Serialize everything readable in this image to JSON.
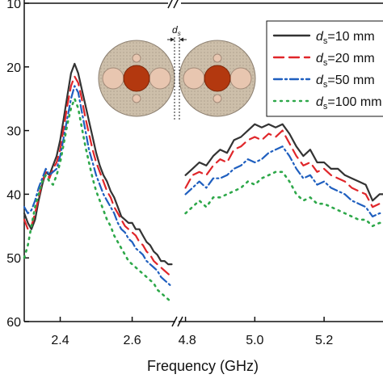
{
  "chart_data": {
    "type": "line",
    "xlabel": "Frequency (GHz)",
    "ylabel": "",
    "x_ticks_left": [
      "2.4",
      "2.6"
    ],
    "x_ticks_right": [
      "4.8",
      "5.0",
      "5.2"
    ],
    "x_ranges": [
      [
        2.3,
        2.72
      ],
      [
        4.78,
        5.37
      ]
    ],
    "y_ticks": [
      "10",
      "20",
      "30",
      "40",
      "50",
      "60"
    ],
    "ylim": [
      -60,
      -10
    ],
    "legend_placement": "top-right",
    "inset_label": "ds",
    "series": [
      {
        "name": "ds=10 mm",
        "prefix": "d",
        "sub": "s",
        "suffix": "=10 mm",
        "color": "#333333",
        "dash": "solid",
        "left": [
          [
            2.3,
            -43
          ],
          [
            2.31,
            -44.5
          ],
          [
            2.32,
            -45.5
          ],
          [
            2.33,
            -44
          ],
          [
            2.34,
            -41
          ],
          [
            2.35,
            -38.5
          ],
          [
            2.36,
            -36.5
          ],
          [
            2.37,
            -37
          ],
          [
            2.38,
            -35.5
          ],
          [
            2.39,
            -34
          ],
          [
            2.4,
            -31.5
          ],
          [
            2.41,
            -28
          ],
          [
            2.42,
            -24.5
          ],
          [
            2.43,
            -21
          ],
          [
            2.44,
            -19.5
          ],
          [
            2.45,
            -21
          ],
          [
            2.46,
            -23.5
          ],
          [
            2.47,
            -26
          ],
          [
            2.48,
            -28.5
          ],
          [
            2.49,
            -31
          ],
          [
            2.5,
            -33.5
          ],
          [
            2.51,
            -35.5
          ],
          [
            2.52,
            -37
          ],
          [
            2.53,
            -38
          ],
          [
            2.54,
            -39.5
          ],
          [
            2.55,
            -40.5
          ],
          [
            2.56,
            -42
          ],
          [
            2.57,
            -43.5
          ],
          [
            2.58,
            -44
          ],
          [
            2.59,
            -44.5
          ],
          [
            2.6,
            -44.5
          ],
          [
            2.61,
            -45.5
          ],
          [
            2.62,
            -45.5
          ],
          [
            2.63,
            -46.5
          ],
          [
            2.64,
            -47.5
          ],
          [
            2.65,
            -48
          ],
          [
            2.66,
            -49
          ],
          [
            2.67,
            -49.5
          ],
          [
            2.68,
            -50.5
          ],
          [
            2.69,
            -50.5
          ],
          [
            2.7,
            -51
          ],
          [
            2.71,
            -51
          ]
        ],
        "right": [
          [
            4.8,
            -37
          ],
          [
            4.82,
            -36
          ],
          [
            4.84,
            -35
          ],
          [
            4.86,
            -35.5
          ],
          [
            4.88,
            -34
          ],
          [
            4.9,
            -33
          ],
          [
            4.92,
            -33.5
          ],
          [
            4.94,
            -31.5
          ],
          [
            4.96,
            -31
          ],
          [
            4.98,
            -30
          ],
          [
            5.0,
            -29
          ],
          [
            5.02,
            -29.5
          ],
          [
            5.04,
            -29
          ],
          [
            5.06,
            -29.5
          ],
          [
            5.08,
            -29
          ],
          [
            5.1,
            -30.5
          ],
          [
            5.12,
            -32.5
          ],
          [
            5.14,
            -34
          ],
          [
            5.16,
            -33
          ],
          [
            5.18,
            -35
          ],
          [
            5.2,
            -35
          ],
          [
            5.22,
            -36
          ],
          [
            5.24,
            -36
          ],
          [
            5.26,
            -37
          ],
          [
            5.28,
            -37.5
          ],
          [
            5.3,
            -38
          ],
          [
            5.32,
            -38.5
          ],
          [
            5.34,
            -41
          ],
          [
            5.36,
            -40
          ],
          [
            5.37,
            -40
          ]
        ]
      },
      {
        "name": "ds=20 mm",
        "prefix": "d",
        "sub": "s",
        "suffix": "=20 mm",
        "color": "#e0262a",
        "dash": "12 7",
        "left": [
          [
            2.3,
            -44
          ],
          [
            2.31,
            -45.5
          ],
          [
            2.32,
            -45
          ],
          [
            2.33,
            -43
          ],
          [
            2.34,
            -40.5
          ],
          [
            2.35,
            -38
          ],
          [
            2.36,
            -36.5
          ],
          [
            2.37,
            -37.5
          ],
          [
            2.38,
            -36
          ],
          [
            2.39,
            -35
          ],
          [
            2.4,
            -33
          ],
          [
            2.41,
            -29.5
          ],
          [
            2.42,
            -26
          ],
          [
            2.43,
            -23
          ],
          [
            2.44,
            -21.5
          ],
          [
            2.45,
            -22.5
          ],
          [
            2.46,
            -25
          ],
          [
            2.47,
            -28
          ],
          [
            2.48,
            -30.5
          ],
          [
            2.49,
            -33
          ],
          [
            2.5,
            -35
          ],
          [
            2.51,
            -36.5
          ],
          [
            2.52,
            -38
          ],
          [
            2.53,
            -39.5
          ],
          [
            2.54,
            -40.5
          ],
          [
            2.55,
            -42
          ],
          [
            2.56,
            -43
          ],
          [
            2.57,
            -44
          ],
          [
            2.58,
            -45
          ],
          [
            2.59,
            -45.5
          ],
          [
            2.6,
            -46
          ],
          [
            2.61,
            -46.5
          ],
          [
            2.62,
            -47.5
          ],
          [
            2.63,
            -48
          ],
          [
            2.64,
            -49
          ],
          [
            2.65,
            -49.5
          ],
          [
            2.66,
            -50.5
          ],
          [
            2.67,
            -51
          ],
          [
            2.68,
            -51.5
          ],
          [
            2.69,
            -52
          ],
          [
            2.7,
            -52.5
          ],
          [
            2.71,
            -53
          ]
        ],
        "right": [
          [
            4.8,
            -39
          ],
          [
            4.82,
            -37
          ],
          [
            4.84,
            -36.5
          ],
          [
            4.86,
            -37
          ],
          [
            4.88,
            -35.5
          ],
          [
            4.9,
            -34.5
          ],
          [
            4.92,
            -35
          ],
          [
            4.94,
            -33
          ],
          [
            4.96,
            -32.5
          ],
          [
            4.98,
            -31.5
          ],
          [
            5.0,
            -31
          ],
          [
            5.02,
            -31.5
          ],
          [
            5.04,
            -30.5
          ],
          [
            5.06,
            -31
          ],
          [
            5.08,
            -30
          ],
          [
            5.1,
            -32
          ],
          [
            5.12,
            -34
          ],
          [
            5.14,
            -35.5
          ],
          [
            5.16,
            -35
          ],
          [
            5.18,
            -36.5
          ],
          [
            5.2,
            -36
          ],
          [
            5.22,
            -37
          ],
          [
            5.24,
            -37.5
          ],
          [
            5.26,
            -38
          ],
          [
            5.28,
            -39
          ],
          [
            5.3,
            -39.5
          ],
          [
            5.32,
            -40
          ],
          [
            5.34,
            -42
          ],
          [
            5.36,
            -41.5
          ],
          [
            5.37,
            -41.5
          ]
        ]
      },
      {
        "name": "ds=50 mm",
        "prefix": "d",
        "sub": "s",
        "suffix": "=50 mm",
        "color": "#1f5fbf",
        "dash": "10 4 2 4",
        "left": [
          [
            2.3,
            -42
          ],
          [
            2.31,
            -43
          ],
          [
            2.32,
            -42.5
          ],
          [
            2.33,
            -41
          ],
          [
            2.34,
            -39
          ],
          [
            2.35,
            -37.5
          ],
          [
            2.36,
            -36
          ],
          [
            2.37,
            -37
          ],
          [
            2.38,
            -36.5
          ],
          [
            2.39,
            -36
          ],
          [
            2.4,
            -34
          ],
          [
            2.41,
            -31
          ],
          [
            2.42,
            -28
          ],
          [
            2.43,
            -25
          ],
          [
            2.44,
            -23
          ],
          [
            2.45,
            -24
          ],
          [
            2.46,
            -27
          ],
          [
            2.47,
            -30
          ],
          [
            2.48,
            -33
          ],
          [
            2.49,
            -35
          ],
          [
            2.5,
            -37
          ],
          [
            2.51,
            -38.5
          ],
          [
            2.52,
            -40
          ],
          [
            2.53,
            -41
          ],
          [
            2.54,
            -42
          ],
          [
            2.55,
            -43
          ],
          [
            2.56,
            -44.5
          ],
          [
            2.57,
            -45.5
          ],
          [
            2.58,
            -46
          ],
          [
            2.59,
            -47
          ],
          [
            2.6,
            -47.5
          ],
          [
            2.61,
            -48.5
          ],
          [
            2.62,
            -49
          ],
          [
            2.63,
            -49.5
          ],
          [
            2.64,
            -50.5
          ],
          [
            2.65,
            -51
          ],
          [
            2.66,
            -51.5
          ],
          [
            2.67,
            -52
          ],
          [
            2.68,
            -53
          ],
          [
            2.69,
            -53.5
          ],
          [
            2.7,
            -54
          ],
          [
            2.71,
            -54.5
          ]
        ],
        "right": [
          [
            4.8,
            -40
          ],
          [
            4.82,
            -39
          ],
          [
            4.84,
            -38
          ],
          [
            4.86,
            -39
          ],
          [
            4.88,
            -37.5
          ],
          [
            4.9,
            -37.5
          ],
          [
            4.92,
            -37
          ],
          [
            4.94,
            -36
          ],
          [
            4.96,
            -35.5
          ],
          [
            4.98,
            -34.5
          ],
          [
            5.0,
            -35
          ],
          [
            5.02,
            -34.5
          ],
          [
            5.04,
            -33.5
          ],
          [
            5.06,
            -33
          ],
          [
            5.08,
            -32.5
          ],
          [
            5.1,
            -34
          ],
          [
            5.12,
            -36
          ],
          [
            5.14,
            -37.5
          ],
          [
            5.16,
            -37
          ],
          [
            5.18,
            -38.5
          ],
          [
            5.2,
            -38
          ],
          [
            5.22,
            -39
          ],
          [
            5.24,
            -39.5
          ],
          [
            5.26,
            -40
          ],
          [
            5.28,
            -41
          ],
          [
            5.3,
            -41.5
          ],
          [
            5.32,
            -42
          ],
          [
            5.34,
            -43.5
          ],
          [
            5.36,
            -43
          ],
          [
            5.37,
            -43
          ]
        ]
      },
      {
        "name": "ds=100 mm",
        "prefix": "d",
        "sub": "s",
        "suffix": "=100 mm",
        "color": "#2ea84a",
        "dash": "2 6",
        "left": [
          [
            2.3,
            -50
          ],
          [
            2.31,
            -48
          ],
          [
            2.32,
            -45
          ],
          [
            2.33,
            -42
          ],
          [
            2.34,
            -40
          ],
          [
            2.35,
            -38
          ],
          [
            2.36,
            -37
          ],
          [
            2.37,
            -38
          ],
          [
            2.38,
            -38.5
          ],
          [
            2.39,
            -37
          ],
          [
            2.4,
            -35
          ],
          [
            2.41,
            -32
          ],
          [
            2.42,
            -29
          ],
          [
            2.43,
            -26.5
          ],
          [
            2.44,
            -25
          ],
          [
            2.45,
            -26.5
          ],
          [
            2.46,
            -29.5
          ],
          [
            2.47,
            -32.5
          ],
          [
            2.48,
            -35
          ],
          [
            2.49,
            -37.5
          ],
          [
            2.5,
            -39.5
          ],
          [
            2.51,
            -41
          ],
          [
            2.52,
            -42.5
          ],
          [
            2.53,
            -44
          ],
          [
            2.54,
            -45
          ],
          [
            2.55,
            -46.5
          ],
          [
            2.56,
            -47.5
          ],
          [
            2.57,
            -48.5
          ],
          [
            2.58,
            -49.5
          ],
          [
            2.59,
            -50.5
          ],
          [
            2.6,
            -51
          ],
          [
            2.61,
            -51.5
          ],
          [
            2.62,
            -52
          ],
          [
            2.63,
            -52.5
          ],
          [
            2.64,
            -53
          ],
          [
            2.65,
            -53.5
          ],
          [
            2.66,
            -54
          ],
          [
            2.67,
            -55
          ],
          [
            2.68,
            -55.5
          ],
          [
            2.69,
            -56
          ],
          [
            2.7,
            -56.5
          ],
          [
            2.71,
            -57
          ]
        ],
        "right": [
          [
            4.8,
            -43
          ],
          [
            4.82,
            -42
          ],
          [
            4.84,
            -41
          ],
          [
            4.86,
            -42
          ],
          [
            4.88,
            -40.5
          ],
          [
            4.9,
            -40.5
          ],
          [
            4.92,
            -40
          ],
          [
            4.94,
            -39.5
          ],
          [
            4.96,
            -39
          ],
          [
            4.98,
            -38
          ],
          [
            5.0,
            -38.5
          ],
          [
            5.02,
            -37.5
          ],
          [
            5.04,
            -37
          ],
          [
            5.06,
            -36.5
          ],
          [
            5.08,
            -36.5
          ],
          [
            5.1,
            -38
          ],
          [
            5.12,
            -40
          ],
          [
            5.14,
            -41
          ],
          [
            5.16,
            -40.5
          ],
          [
            5.18,
            -41.5
          ],
          [
            5.2,
            -41.5
          ],
          [
            5.22,
            -42
          ],
          [
            5.24,
            -42.5
          ],
          [
            5.26,
            -43
          ],
          [
            5.28,
            -43.5
          ],
          [
            5.3,
            -44
          ],
          [
            5.32,
            -44
          ],
          [
            5.34,
            -45
          ],
          [
            5.36,
            -44.5
          ],
          [
            5.37,
            -44.5
          ]
        ]
      }
    ]
  }
}
